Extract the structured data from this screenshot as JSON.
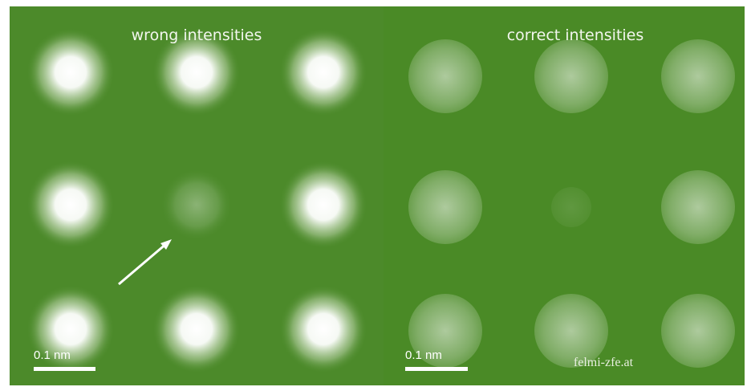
{
  "panels": [
    {
      "title": "wrong intensities",
      "scale_bar": "0.1 nm"
    },
    {
      "title": "correct intensities",
      "scale_bar": "0.1 nm"
    }
  ],
  "watermark": "felmi-zfe.at"
}
